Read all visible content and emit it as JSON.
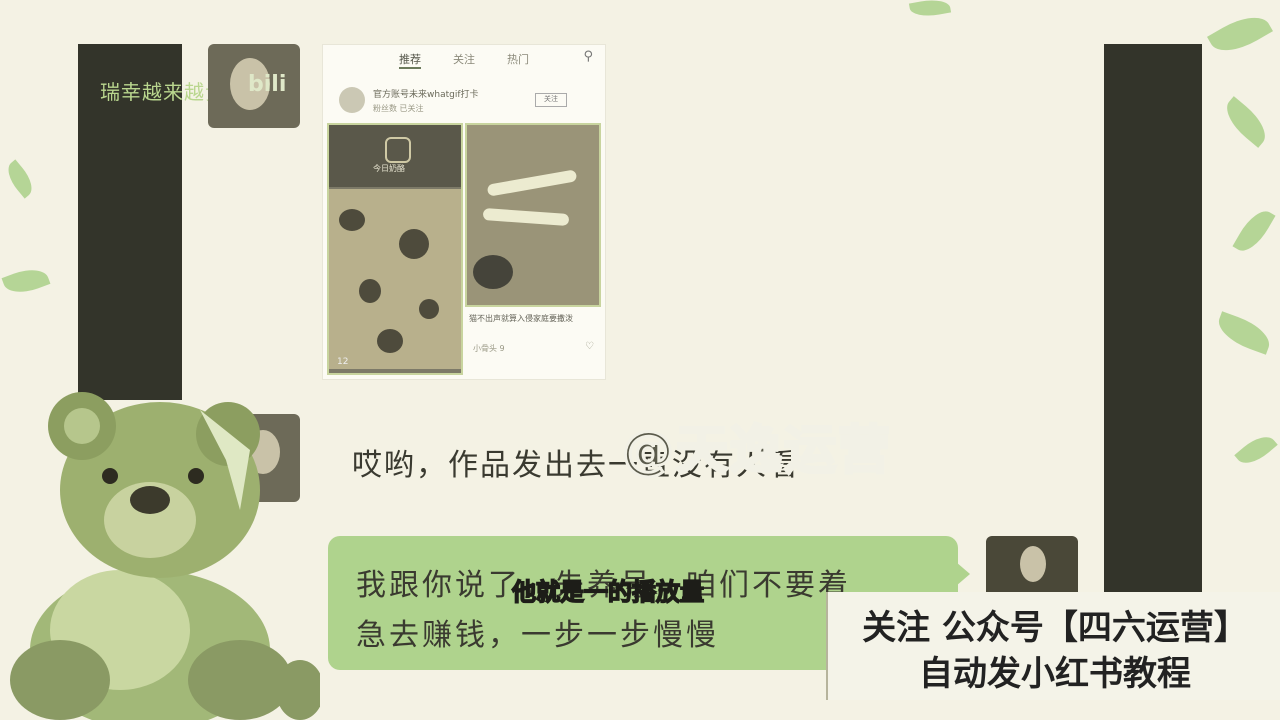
{
  "background_color": "#f4f2e4",
  "accent_green": "#afd38d",
  "left_panel_caption": "瑞幸越来越贵",
  "bili_logo": "bili",
  "phone": {
    "tabs": [
      "推荐",
      "关注",
      "热门"
    ],
    "profile_name": "官方账号未来whatgif打卡",
    "profile_sub": "粉丝数 已关注",
    "follow_label": "关注",
    "card1_caption": "今日奶酪",
    "card1_count": "12",
    "card2_title": "猫不出声就算入侵家庭要撒泼",
    "card2_meta": "小骨头 9",
    "search_icon": "search-icon"
  },
  "bubble1_text": "哎哟，作品发出去一直没有人看",
  "watermark": "@天逸运营",
  "bubble2_line1": "我跟你说了，先养号，咱们不要着",
  "bubble2_line2": "急去赚钱，一步一步慢慢",
  "subtitle": "他就是一的播放量",
  "promo_line1": "关注 公众号【四六运营】",
  "promo_line2": "自动发小红书教程"
}
